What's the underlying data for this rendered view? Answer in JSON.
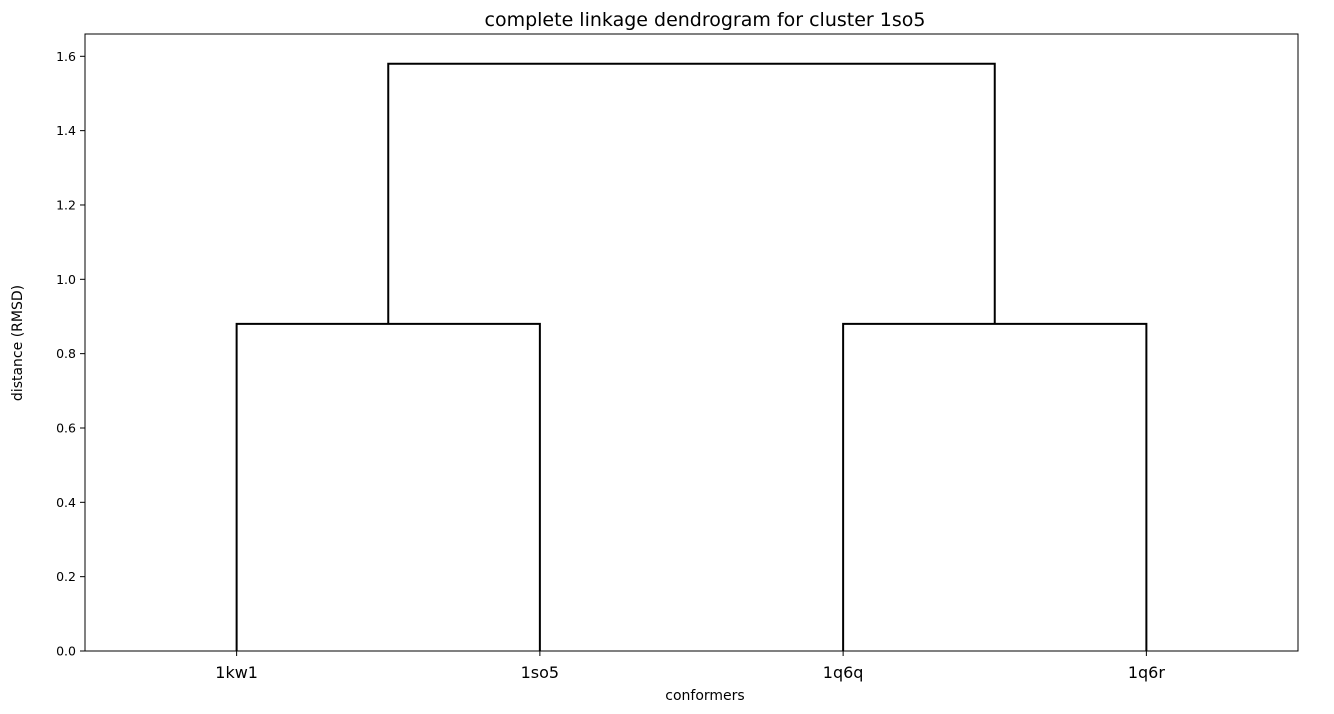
{
  "chart_data": {
    "type": "dendrogram",
    "title": "complete linkage dendrogram for cluster 1so5",
    "xlabel": "conformers",
    "ylabel": "distance (RMSD)",
    "leaves": [
      "1kw1",
      "1so5",
      "1q6q",
      "1q6r"
    ],
    "yticks": [
      "0.0",
      "0.2",
      "0.4",
      "0.6",
      "0.8",
      "1.0",
      "1.2",
      "1.4",
      "1.6"
    ],
    "ylim": [
      0,
      1.66
    ],
    "merges": [
      {
        "left": "1kw1",
        "right": "1so5",
        "height": 0.88
      },
      {
        "left": "1q6q",
        "right": "1q6r",
        "height": 0.88
      },
      {
        "left": "cluster-1kw1-1so5",
        "right": "cluster-1q6q-1q6r",
        "height": 1.58
      }
    ],
    "link_color": "#000000",
    "grid": false,
    "legend": "none"
  }
}
